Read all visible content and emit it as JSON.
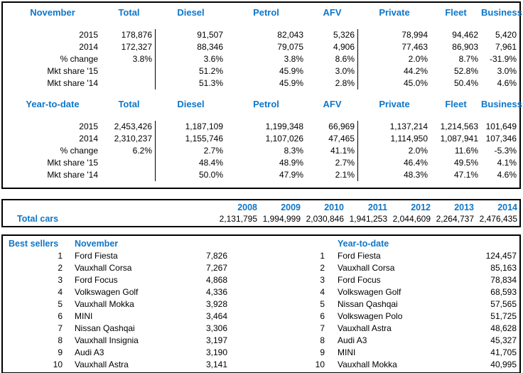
{
  "colors": {
    "accent": "#0e76c8",
    "border": "#000000",
    "background": "#ffffff",
    "text": "#000000"
  },
  "monthly": {
    "section_label": "November",
    "columns": [
      "Total",
      "Diesel",
      "Petrol",
      "AFV",
      "Private",
      "Fleet",
      "Business"
    ],
    "rows": [
      {
        "label": "2015",
        "values": [
          "178,876",
          "91,507",
          "82,043",
          "5,326",
          "78,994",
          "94,462",
          "5,420"
        ]
      },
      {
        "label": "2014",
        "values": [
          "172,327",
          "88,346",
          "79,075",
          "4,906",
          "77,463",
          "86,903",
          "7,961"
        ]
      },
      {
        "label": "% change",
        "values": [
          "3.8%",
          "3.6%",
          "3.8%",
          "8.6%",
          "2.0%",
          "8.7%",
          "-31.9%"
        ]
      },
      {
        "label": "Mkt share '15",
        "values": [
          "",
          "51.2%",
          "45.9%",
          "3.0%",
          "44.2%",
          "52.8%",
          "3.0%"
        ]
      },
      {
        "label": "Mkt share '14",
        "values": [
          "",
          "51.3%",
          "45.9%",
          "2.8%",
          "45.0%",
          "50.4%",
          "4.6%"
        ]
      }
    ]
  },
  "ytd": {
    "section_label": "Year-to-date",
    "columns": [
      "Total",
      "Diesel",
      "Petrol",
      "AFV",
      "Private",
      "Fleet",
      "Business"
    ],
    "rows": [
      {
        "label": "2015",
        "values": [
          "2,453,426",
          "1,187,109",
          "1,199,348",
          "66,969",
          "1,137,214",
          "1,214,563",
          "101,649"
        ]
      },
      {
        "label": "2014",
        "values": [
          "2,310,237",
          "1,155,746",
          "1,107,026",
          "47,465",
          "1,114,950",
          "1,087,941",
          "107,346"
        ]
      },
      {
        "label": "% change",
        "values": [
          "6.2%",
          "2.7%",
          "8.3%",
          "41.1%",
          "2.0%",
          "11.6%",
          "-5.3%"
        ]
      },
      {
        "label": "Mkt share '15",
        "values": [
          "",
          "48.4%",
          "48.9%",
          "2.7%",
          "46.4%",
          "49.5%",
          "4.1%"
        ]
      },
      {
        "label": "Mkt share '14",
        "values": [
          "",
          "50.0%",
          "47.9%",
          "2.1%",
          "48.3%",
          "47.1%",
          "4.6%"
        ]
      }
    ]
  },
  "total_cars": {
    "label": "Total cars",
    "years": [
      "2008",
      "2009",
      "2010",
      "2011",
      "2012",
      "2013",
      "2014"
    ],
    "values": [
      "2,131,795",
      "1,994,999",
      "2,030,846",
      "1,941,253",
      "2,044,609",
      "2,264,737",
      "2,476,435"
    ]
  },
  "best_sellers": {
    "title": "Best sellers",
    "november": {
      "label": "November",
      "items": [
        {
          "rank": "1",
          "name": "Ford Fiesta",
          "value": "7,826"
        },
        {
          "rank": "2",
          "name": "Vauxhall Corsa",
          "value": "7,267"
        },
        {
          "rank": "3",
          "name": "Ford Focus",
          "value": "4,868"
        },
        {
          "rank": "4",
          "name": "Volkswagen Golf",
          "value": "4,336"
        },
        {
          "rank": "5",
          "name": "Vauxhall Mokka",
          "value": "3,928"
        },
        {
          "rank": "6",
          "name": "MINI",
          "value": "3,464"
        },
        {
          "rank": "7",
          "name": "Nissan Qashqai",
          "value": "3,306"
        },
        {
          "rank": "8",
          "name": "Vauxhall Insignia",
          "value": "3,197"
        },
        {
          "rank": "9",
          "name": "Audi A3",
          "value": "3,190"
        },
        {
          "rank": "10",
          "name": "Vauxhall Astra",
          "value": "3,141"
        }
      ]
    },
    "year_to_date": {
      "label": "Year-to-date",
      "items": [
        {
          "rank": "1",
          "name": "Ford Fiesta",
          "value": "124,457"
        },
        {
          "rank": "2",
          "name": "Vauxhall Corsa",
          "value": "85,163"
        },
        {
          "rank": "3",
          "name": "Ford Focus",
          "value": "78,834"
        },
        {
          "rank": "4",
          "name": "Volkswagen Golf",
          "value": "68,593"
        },
        {
          "rank": "5",
          "name": "Nissan Qashqai",
          "value": "57,565"
        },
        {
          "rank": "6",
          "name": "Volkswagen Polo",
          "value": "51,725"
        },
        {
          "rank": "7",
          "name": "Vauxhall Astra",
          "value": "48,628"
        },
        {
          "rank": "8",
          "name": "Audi A3",
          "value": "45,327"
        },
        {
          "rank": "9",
          "name": "MINI",
          "value": "41,705"
        },
        {
          "rank": "10",
          "name": "Vauxhall Mokka",
          "value": "40,995"
        }
      ]
    }
  }
}
